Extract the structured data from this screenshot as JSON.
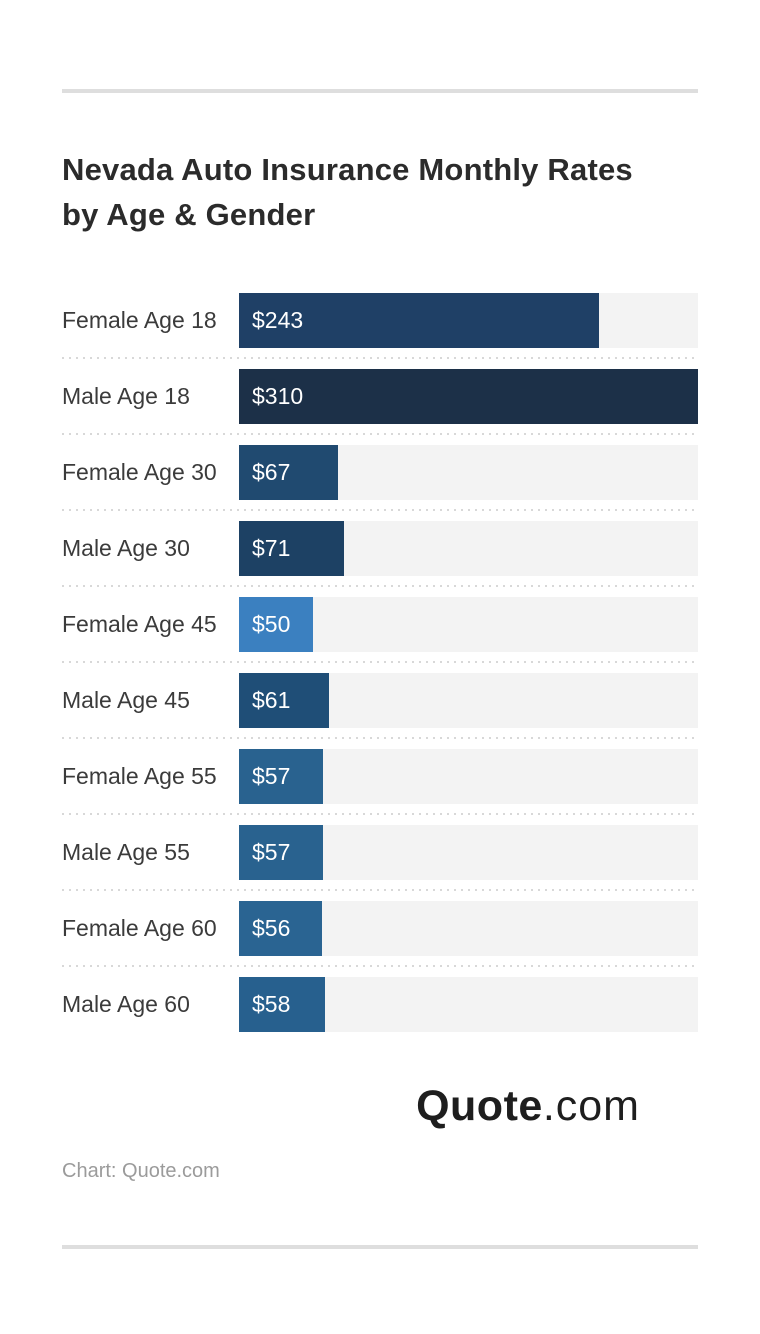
{
  "page": {
    "title_line1": "Nevada Auto Insurance Monthly Rates",
    "title_line2": "by Age & Gender",
    "attribution": "Chart: Quote.com",
    "logo": {
      "bold": "Quote",
      "light": ".com"
    }
  },
  "chart_data": {
    "type": "bar",
    "orientation": "horizontal",
    "title": "Nevada Auto Insurance Monthly Rates by Age & Gender",
    "categories": [
      "Female Age 18",
      "Male Age 18",
      "Female Age 30",
      "Male Age 30",
      "Female Age 45",
      "Male Age 45",
      "Female Age 55",
      "Male Age 55",
      "Female Age 60",
      "Male Age 60"
    ],
    "values": [
      243,
      310,
      67,
      71,
      50,
      61,
      57,
      57,
      56,
      58
    ],
    "value_labels": [
      "$243",
      "$310",
      "$67",
      "$71",
      "$50",
      "$61",
      "$57",
      "$57",
      "$56",
      "$58"
    ],
    "bar_colors": [
      "#1f4066",
      "#1c3048",
      "#204a70",
      "#1d4164",
      "#3b80c0",
      "#1f4e77",
      "#29628f",
      "#29628f",
      "#2a6492",
      "#27608e"
    ],
    "xlim": [
      0,
      310
    ],
    "unit": "$ per month",
    "grid": false,
    "legend": false,
    "track_color": "#f3f3f3",
    "divider_color": "#d8d8d8",
    "value_label_color": "#ffffff",
    "category_label_color": "#3b3b3b"
  }
}
